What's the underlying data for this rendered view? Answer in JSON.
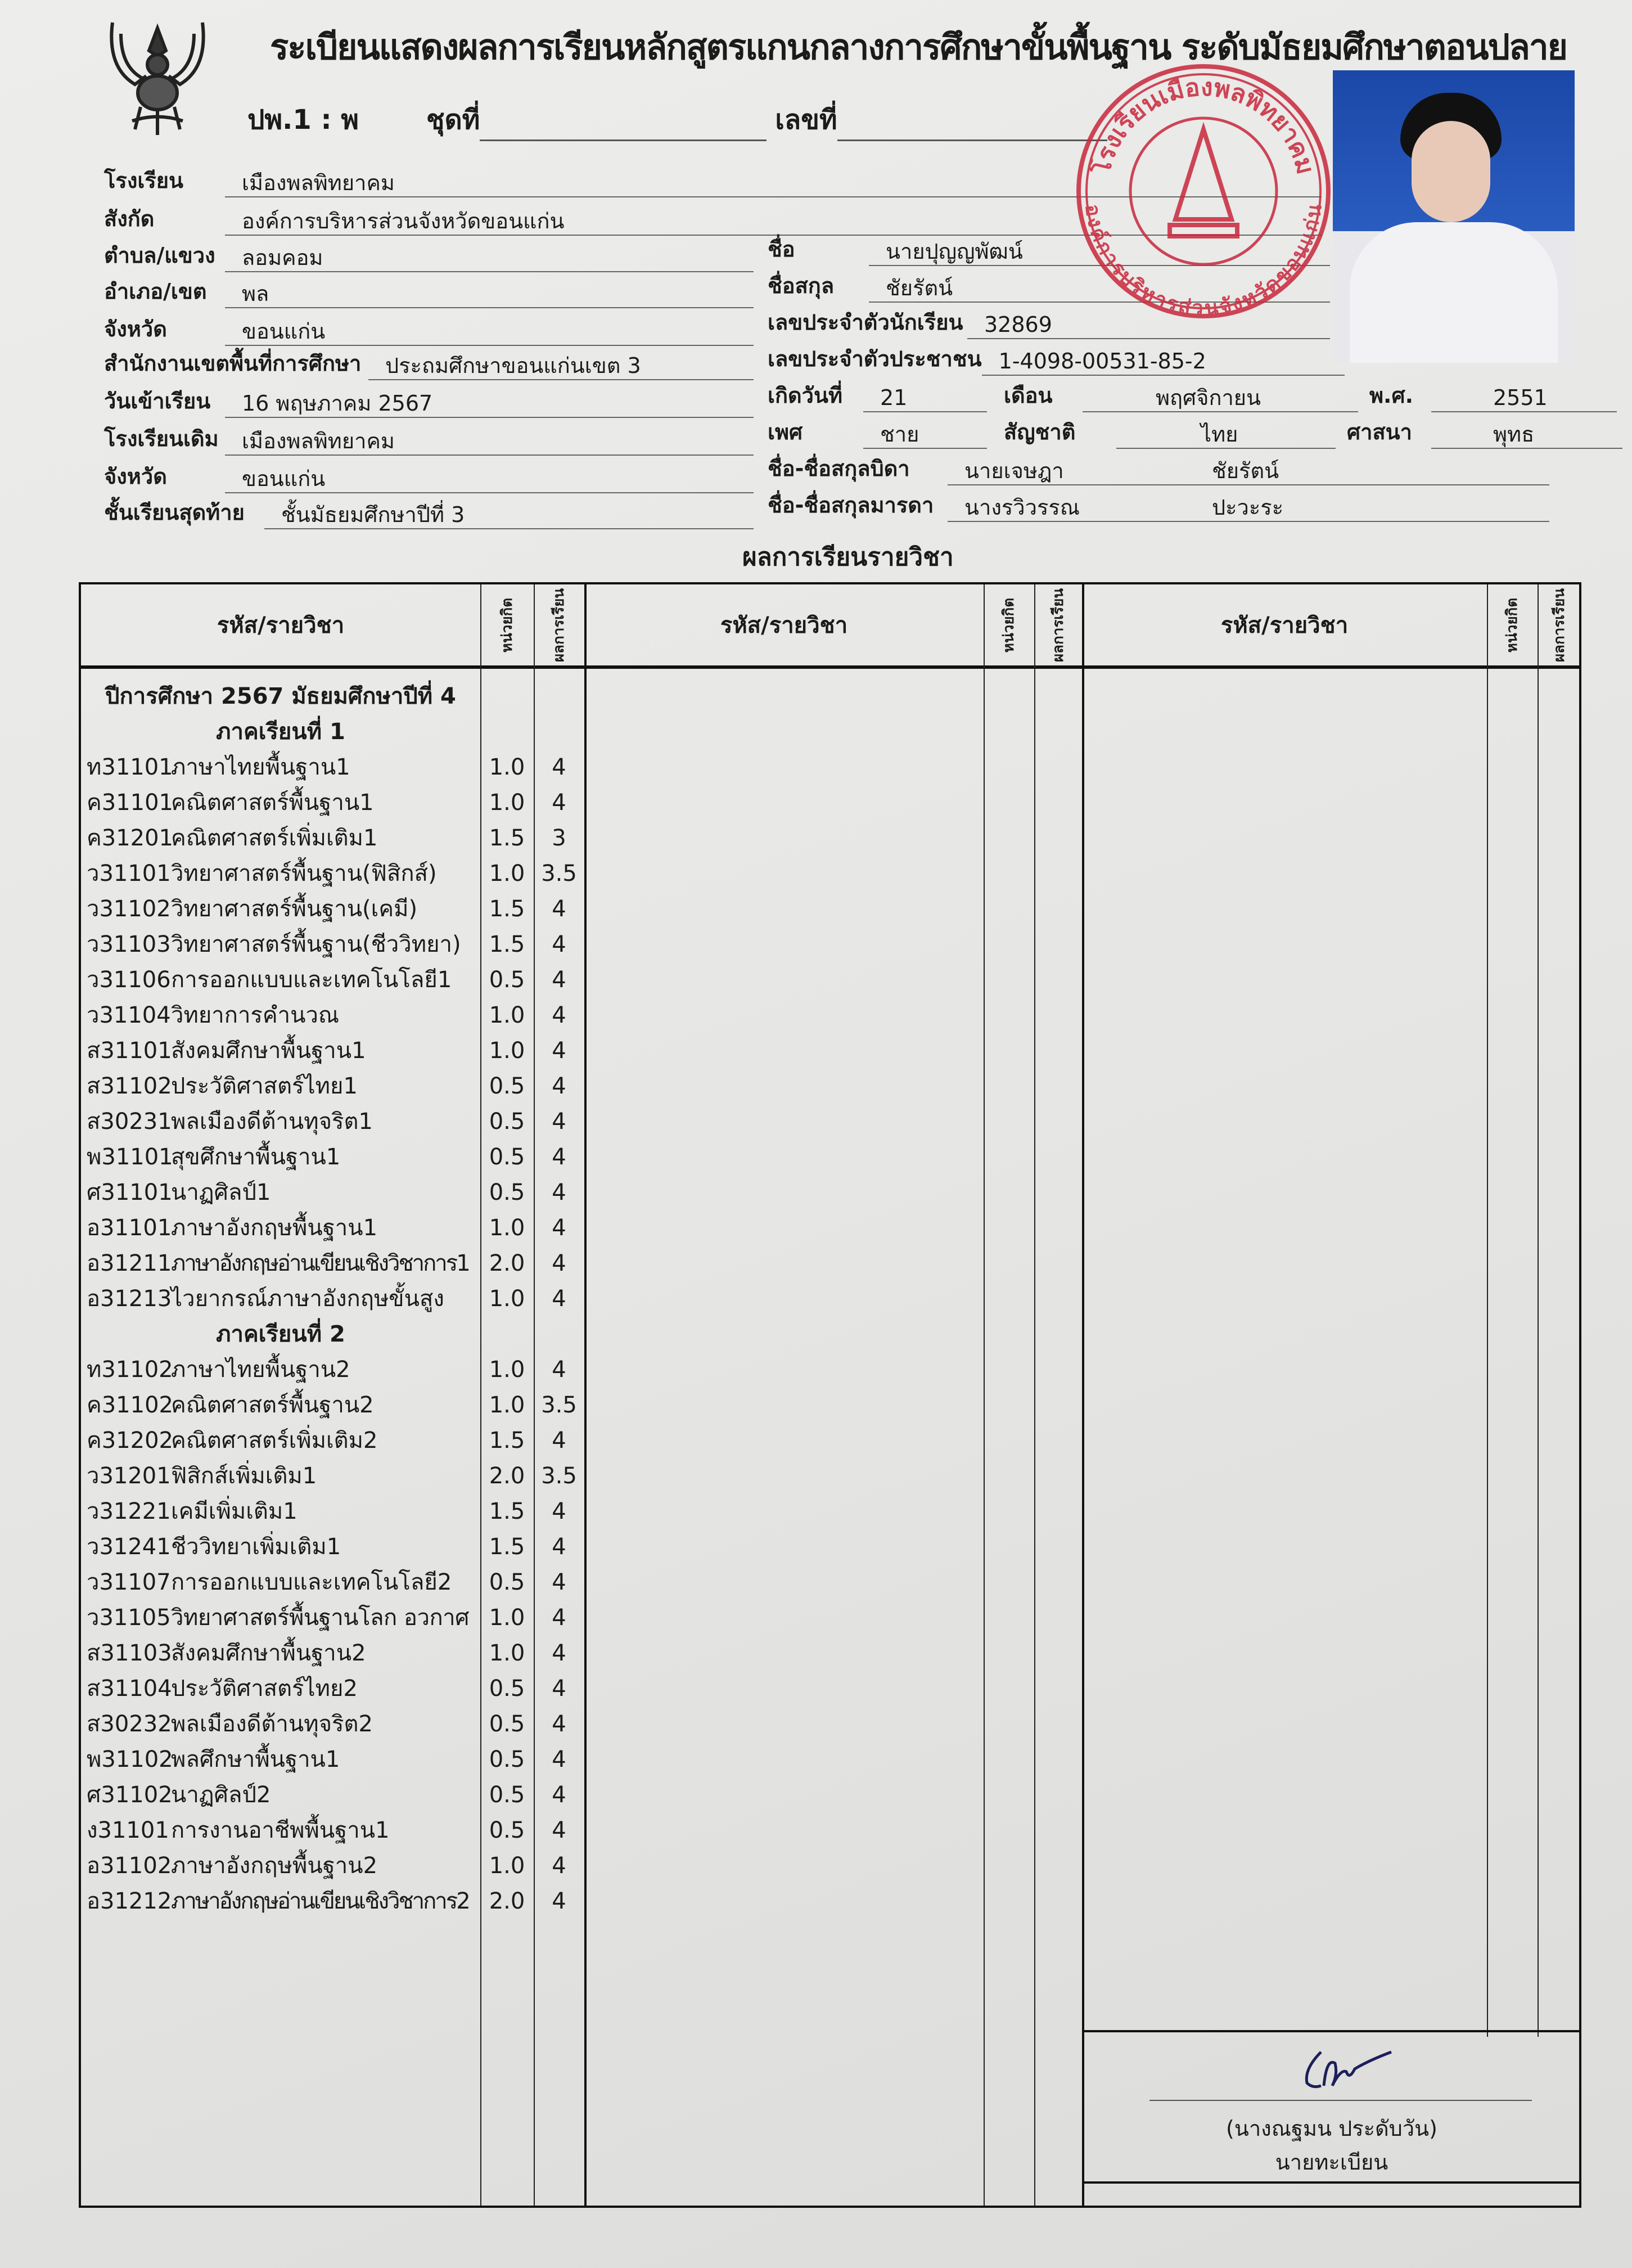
{
  "header": {
    "title": "ระเบียนแสดงผลการเรียนหลักสูตรแกนกลางการศึกษาขั้นพื้นฐาน  ระดับมัธยมศึกษาตอนปลาย",
    "form_code": "ปพ.1 : พ",
    "set_label": "ชุดที่",
    "number_label": "เลขที่",
    "emblem_icon": "garuda-emblem-icon"
  },
  "stamp": {
    "top_text": "โรงเรียนเมืองพลพิทยาคม",
    "bottom_text": "องค์การบริหารส่วนจังหวัดขอนแก่น",
    "color": "#c8283c"
  },
  "school_info": [
    {
      "label": "โรงเรียน",
      "value": "เมืองพลพิทยาคม"
    },
    {
      "label": "สังกัด",
      "value": "องค์การบริหารส่วนจังหวัดขอนแก่น"
    },
    {
      "label": "ตำบล/แขวง",
      "value": "ลอมคอม"
    },
    {
      "label": "อำเภอ/เขต",
      "value": "พล"
    },
    {
      "label": "จังหวัด",
      "value": "ขอนแก่น"
    },
    {
      "label": "สำนักงานเขตพื้นที่การศึกษา",
      "value": "ประถมศึกษาขอนแก่นเขต 3"
    },
    {
      "label": "วันเข้าเรียน",
      "value": "16  พฤษภาคม  2567"
    },
    {
      "label": "โรงเรียนเดิม",
      "value": "เมืองพลพิทยาคม"
    },
    {
      "label": "จังหวัด",
      "value": "ขอนแก่น"
    },
    {
      "label": "ชั้นเรียนสุดท้าย",
      "value": "ชั้นมัธยมศึกษาปีที่ 3"
    }
  ],
  "student_info": {
    "name_label": "ชื่อ",
    "name": "นายปุญญพัฒน์",
    "surname_label": "ชื่อสกุล",
    "surname": "ชัยรัตน์",
    "student_id_label": "เลขประจำตัวนักเรียน",
    "student_id": "32869",
    "citizen_id_label": "เลขประจำตัวประชาชน",
    "citizen_id": "1-4098-00531-85-2",
    "birth_day_label": "เกิดวันที่",
    "birth_day": "21",
    "birth_month_label": "เดือน",
    "birth_month": "พฤศจิกายน",
    "birth_year_label": "พ.ศ.",
    "birth_year": "2551",
    "sex_label": "เพศ",
    "sex": "ชาย",
    "nationality_label": "สัญชาติ",
    "nationality": "ไทย",
    "religion_label": "ศาสนา",
    "religion": "พุทธ",
    "father_label": "ชื่อ-ชื่อสกุลบิดา",
    "father_name": "นายเจษฎา",
    "father_surname": "ชัยรัตน์",
    "mother_label": "ชื่อ-ชื่อสกุลมารดา",
    "mother_name": "นางรวิวรรณ",
    "mother_surname": "ปะวะระ"
  },
  "results": {
    "section_title": "ผลการเรียนรายวิชา",
    "col_subject": "รหัส/รายวิชา",
    "col_credit": "หน่วยกิต",
    "col_grade": "ผลการเรียน",
    "year_heading": "ปีการศึกษา 2567  มัธยมศึกษาปีที่ 4",
    "semesters": [
      {
        "heading": "ภาคเรียนที่ 1",
        "courses": [
          {
            "code": "ท31101",
            "name": "ภาษาไทยพื้นฐาน1",
            "credit": "1.0",
            "grade": "4"
          },
          {
            "code": "ค31101",
            "name": "คณิตศาสตร์พื้นฐาน1",
            "credit": "1.0",
            "grade": "4"
          },
          {
            "code": "ค31201",
            "name": "คณิตศาสตร์เพิ่มเติม1",
            "credit": "1.5",
            "grade": "3"
          },
          {
            "code": "ว31101",
            "name": "วิทยาศาสตร์พื้นฐาน(ฟิสิกส์)",
            "credit": "1.0",
            "grade": "3.5"
          },
          {
            "code": "ว31102",
            "name": "วิทยาศาสตร์พื้นฐาน(เคมี)",
            "credit": "1.5",
            "grade": "4"
          },
          {
            "code": "ว31103",
            "name": "วิทยาศาสตร์พื้นฐาน(ชีววิทยา)",
            "credit": "1.5",
            "grade": "4"
          },
          {
            "code": "ว31106",
            "name": "การออกแบบและเทคโนโลยี1",
            "credit": "0.5",
            "grade": "4"
          },
          {
            "code": "ว31104",
            "name": "วิทยาการคำนวณ",
            "credit": "1.0",
            "grade": "4"
          },
          {
            "code": "ส31101",
            "name": "สังคมศึกษาพื้นฐาน1",
            "credit": "1.0",
            "grade": "4"
          },
          {
            "code": "ส31102",
            "name": "ประวัติศาสตร์ไทย1",
            "credit": "0.5",
            "grade": "4"
          },
          {
            "code": "ส30231",
            "name": "พลเมืองดีต้านทุจริต1",
            "credit": "0.5",
            "grade": "4"
          },
          {
            "code": "พ31101",
            "name": "สุขศึกษาพื้นฐาน1",
            "credit": "0.5",
            "grade": "4"
          },
          {
            "code": "ศ31101",
            "name": "นาฏศิลป์1",
            "credit": "0.5",
            "grade": "4"
          },
          {
            "code": "อ31101",
            "name": "ภาษาอังกฤษพื้นฐาน1",
            "credit": "1.0",
            "grade": "4"
          },
          {
            "code": "อ31211",
            "name": "ภาษาอังกฤษอ่านเขียนเชิงวิชาการ1",
            "credit": "2.0",
            "grade": "4"
          },
          {
            "code": "อ31213",
            "name": "ไวยากรณ์ภาษาอังกฤษขั้นสูง",
            "credit": "1.0",
            "grade": "4"
          }
        ]
      },
      {
        "heading": "ภาคเรียนที่ 2",
        "courses": [
          {
            "code": "ท31102",
            "name": "ภาษาไทยพื้นฐาน2",
            "credit": "1.0",
            "grade": "4"
          },
          {
            "code": "ค31102",
            "name": "คณิตศาสตร์พื้นฐาน2",
            "credit": "1.0",
            "grade": "3.5"
          },
          {
            "code": "ค31202",
            "name": "คณิตศาสตร์เพิ่มเติม2",
            "credit": "1.5",
            "grade": "4"
          },
          {
            "code": "ว31201",
            "name": "ฟิสิกส์เพิ่มเติม1",
            "credit": "2.0",
            "grade": "3.5"
          },
          {
            "code": "ว31221",
            "name": "เคมีเพิ่มเติม1",
            "credit": "1.5",
            "grade": "4"
          },
          {
            "code": "ว31241",
            "name": "ชีววิทยาเพิ่มเติม1",
            "credit": "1.5",
            "grade": "4"
          },
          {
            "code": "ว31107",
            "name": "การออกแบบและเทคโนโลยี2",
            "credit": "0.5",
            "grade": "4"
          },
          {
            "code": "ว31105",
            "name": "วิทยาศาสตร์พื้นฐานโลก อวกาศ",
            "credit": "1.0",
            "grade": "4"
          },
          {
            "code": "ส31103",
            "name": "สังคมศึกษาพื้นฐาน2",
            "credit": "1.0",
            "grade": "4"
          },
          {
            "code": "ส31104",
            "name": "ประวัติศาสตร์ไทย2",
            "credit": "0.5",
            "grade": "4"
          },
          {
            "code": "ส30232",
            "name": "พลเมืองดีต้านทุจริต2",
            "credit": "0.5",
            "grade": "4"
          },
          {
            "code": "พ31102",
            "name": "พลศึกษาพื้นฐาน1",
            "credit": "0.5",
            "grade": "4"
          },
          {
            "code": "ศ31102",
            "name": "นาฏศิลป์2",
            "credit": "0.5",
            "grade": "4"
          },
          {
            "code": "ง31101",
            "name": "การงานอาชีพพื้นฐาน1",
            "credit": "0.5",
            "grade": "4"
          },
          {
            "code": "อ31102",
            "name": "ภาษาอังกฤษพื้นฐาน2",
            "credit": "1.0",
            "grade": "4"
          },
          {
            "code": "อ31212",
            "name": "ภาษาอังกฤษอ่านเขียนเชิงวิชาการ2",
            "credit": "2.0",
            "grade": "4"
          }
        ]
      }
    ]
  },
  "signature": {
    "registrar_name": "(นางณฐมน  ประดับวัน)",
    "registrar_title": "นายทะเบียน"
  }
}
